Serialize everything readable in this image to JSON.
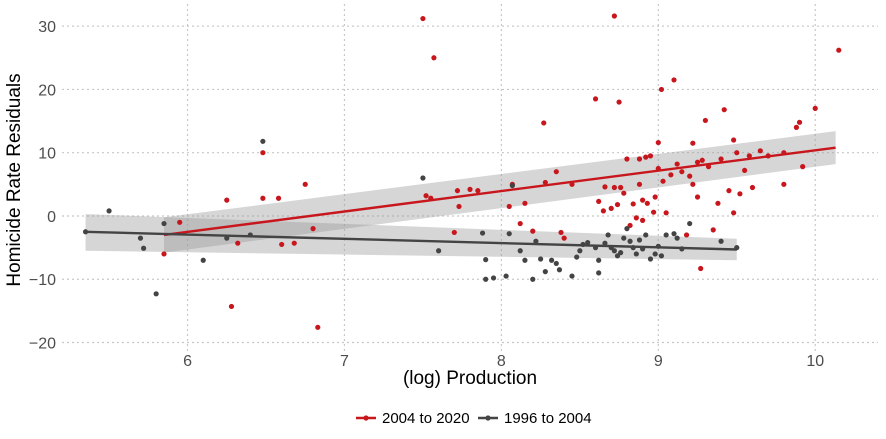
{
  "chart_data": {
    "type": "scatter",
    "xlabel": "(log) Production",
    "ylabel": "Homicide Rate Residuals",
    "xlim": [
      5.2,
      10.4
    ],
    "ylim": [
      -21.5,
      33.5
    ],
    "x_ticks": [
      "6",
      "7",
      "8",
      "9",
      "10"
    ],
    "y_ticks": [
      "−20",
      "−10",
      "0",
      "10",
      "20",
      "30"
    ],
    "grid": true,
    "legend_position": "bottom",
    "series": [
      {
        "name": "2004 to 2020",
        "color": "#c8161d",
        "fit": {
          "x": [
            5.85,
            10.13
          ],
          "y": [
            -3.0,
            10.8
          ]
        },
        "band_upper": [
          -0.2,
          13.4
        ],
        "band_lower": [
          -5.8,
          8.2
        ],
        "points": [
          [
            5.85,
            -6
          ],
          [
            5.95,
            -1
          ],
          [
            6.25,
            2.5
          ],
          [
            6.28,
            -14.3
          ],
          [
            6.32,
            -4.3
          ],
          [
            6.48,
            2.8
          ],
          [
            6.48,
            10
          ],
          [
            6.58,
            2.8
          ],
          [
            6.6,
            -4.5
          ],
          [
            6.68,
            -4.3
          ],
          [
            6.75,
            5
          ],
          [
            6.8,
            -2
          ],
          [
            6.83,
            -17.6
          ],
          [
            7.5,
            31.2
          ],
          [
            7.52,
            3.2
          ],
          [
            7.55,
            2.8
          ],
          [
            7.57,
            25
          ],
          [
            7.7,
            -2.6
          ],
          [
            7.72,
            4
          ],
          [
            7.73,
            1.5
          ],
          [
            7.8,
            4.2
          ],
          [
            7.85,
            4
          ],
          [
            8.05,
            1.5
          ],
          [
            8.07,
            5
          ],
          [
            8.12,
            -1.2
          ],
          [
            8.15,
            2
          ],
          [
            8.2,
            -2.4
          ],
          [
            8.27,
            14.7
          ],
          [
            8.28,
            5.3
          ],
          [
            8.35,
            7
          ],
          [
            8.38,
            -2.6
          ],
          [
            8.4,
            -3.5
          ],
          [
            8.45,
            5
          ],
          [
            8.6,
            18.5
          ],
          [
            8.62,
            2.3
          ],
          [
            8.65,
            0.8
          ],
          [
            8.66,
            4.6
          ],
          [
            8.7,
            1.2
          ],
          [
            8.72,
            31.6
          ],
          [
            8.72,
            4.5
          ],
          [
            8.74,
            1.8
          ],
          [
            8.75,
            18
          ],
          [
            8.76,
            4.5
          ],
          [
            8.78,
            3.6
          ],
          [
            8.8,
            9
          ],
          [
            8.82,
            -1.5
          ],
          [
            8.84,
            1.9
          ],
          [
            8.86,
            -0.3
          ],
          [
            8.88,
            5
          ],
          [
            8.88,
            9
          ],
          [
            8.9,
            2.5
          ],
          [
            8.9,
            -0.7
          ],
          [
            8.92,
            9.3
          ],
          [
            8.93,
            2
          ],
          [
            8.95,
            9.5
          ],
          [
            8.97,
            0.6
          ],
          [
            8.98,
            3
          ],
          [
            9.0,
            11.6
          ],
          [
            9.0,
            7.5
          ],
          [
            9.02,
            20
          ],
          [
            9.03,
            5.5
          ],
          [
            9.05,
            0.5
          ],
          [
            9.08,
            6.5
          ],
          [
            9.1,
            21.5
          ],
          [
            9.12,
            8.2
          ],
          [
            9.15,
            7
          ],
          [
            9.18,
            -3
          ],
          [
            9.2,
            6.3
          ],
          [
            9.22,
            11.5
          ],
          [
            9.22,
            5
          ],
          [
            9.25,
            3
          ],
          [
            9.25,
            8.5
          ],
          [
            9.27,
            -8.3
          ],
          [
            9.28,
            8.8
          ],
          [
            9.3,
            15.1
          ],
          [
            9.32,
            7.8
          ],
          [
            9.35,
            -2.2
          ],
          [
            9.38,
            2
          ],
          [
            9.4,
            9
          ],
          [
            9.42,
            16.8
          ],
          [
            9.45,
            4
          ],
          [
            9.48,
            12
          ],
          [
            9.48,
            0.5
          ],
          [
            9.5,
            10
          ],
          [
            9.52,
            3.5
          ],
          [
            9.55,
            7.2
          ],
          [
            9.58,
            9.5
          ],
          [
            9.6,
            4.5
          ],
          [
            9.65,
            10.3
          ],
          [
            9.7,
            9.5
          ],
          [
            9.8,
            5
          ],
          [
            9.8,
            10
          ],
          [
            9.88,
            14
          ],
          [
            9.9,
            14.8
          ],
          [
            9.92,
            7.8
          ],
          [
            10.0,
            17
          ],
          [
            10.15,
            26.2
          ]
        ]
      },
      {
        "name": "1996 to 2004",
        "color": "#444444",
        "fit": {
          "x": [
            5.35,
            9.5
          ],
          "y": [
            -2.5,
            -5.3
          ]
        },
        "band_upper": [
          0.3,
          -3.6
        ],
        "band_lower": [
          -5.5,
          -7.0
        ],
        "points": [
          [
            5.35,
            -2.5
          ],
          [
            5.5,
            0.8
          ],
          [
            5.7,
            -3.5
          ],
          [
            5.72,
            -5.1
          ],
          [
            5.8,
            -12.3
          ],
          [
            5.85,
            -1.2
          ],
          [
            6.1,
            -7
          ],
          [
            6.25,
            -3.5
          ],
          [
            6.4,
            -3
          ],
          [
            6.48,
            11.8
          ],
          [
            7.5,
            6
          ],
          [
            7.6,
            -5.5
          ],
          [
            7.88,
            -2.7
          ],
          [
            7.9,
            -6.9
          ],
          [
            7.9,
            -10
          ],
          [
            7.95,
            -9.8
          ],
          [
            8.03,
            -9.5
          ],
          [
            8.05,
            -2.8
          ],
          [
            8.07,
            4.8
          ],
          [
            8.12,
            -5.5
          ],
          [
            8.15,
            -7
          ],
          [
            8.2,
            -10
          ],
          [
            8.22,
            -4
          ],
          [
            8.25,
            -6.8
          ],
          [
            8.28,
            -8.8
          ],
          [
            8.32,
            -7
          ],
          [
            8.35,
            -7.5
          ],
          [
            8.37,
            -8.5
          ],
          [
            8.45,
            -9.5
          ],
          [
            8.48,
            -6.5
          ],
          [
            8.5,
            -5.5
          ],
          [
            8.52,
            -4.5
          ],
          [
            8.55,
            -4.2
          ],
          [
            8.6,
            -5
          ],
          [
            8.62,
            -7
          ],
          [
            8.62,
            -9
          ],
          [
            8.66,
            -4.3
          ],
          [
            8.68,
            -3
          ],
          [
            8.7,
            -5
          ],
          [
            8.72,
            -5.5
          ],
          [
            8.74,
            -6.3
          ],
          [
            8.76,
            -5.8
          ],
          [
            8.78,
            -3.5
          ],
          [
            8.8,
            -2
          ],
          [
            8.82,
            -4
          ],
          [
            8.84,
            -5
          ],
          [
            8.86,
            -6
          ],
          [
            8.88,
            -3.8
          ],
          [
            8.9,
            -5.2
          ],
          [
            8.92,
            -3
          ],
          [
            8.95,
            -6.8
          ],
          [
            8.98,
            -6
          ],
          [
            9.0,
            -4.8
          ],
          [
            9.02,
            -6.3
          ],
          [
            9.05,
            -3
          ],
          [
            9.1,
            -2.8
          ],
          [
            9.12,
            -3.5
          ],
          [
            9.15,
            -5.2
          ],
          [
            9.2,
            -1.2
          ],
          [
            9.4,
            -4
          ],
          [
            9.5,
            -5
          ]
        ]
      }
    ]
  }
}
